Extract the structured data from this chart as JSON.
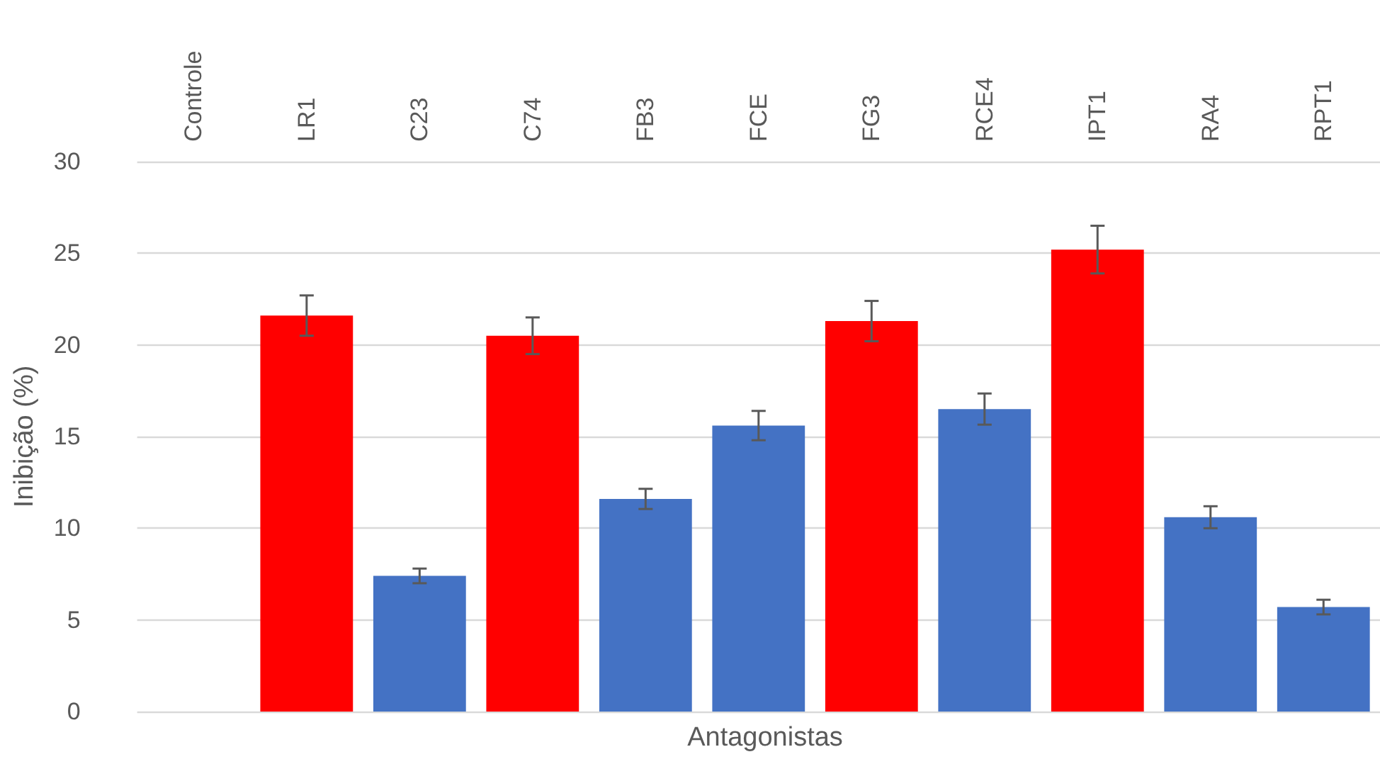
{
  "chart_data": {
    "type": "bar",
    "xlabel": "Antagonistas",
    "ylabel": "Inibição (%)",
    "categories": [
      "Controle",
      "LR1",
      "C23",
      "C74",
      "FB3",
      "FCE",
      "FG3",
      "RCE4",
      "IPT1",
      "RA4",
      "RPT1"
    ],
    "values": [
      0,
      21.6,
      7.4,
      20.5,
      11.6,
      15.6,
      21.3,
      16.5,
      25.2,
      10.6,
      5.7
    ],
    "errors": [
      null,
      1.1,
      0.4,
      1.0,
      0.55,
      0.8,
      1.1,
      0.85,
      1.3,
      0.6,
      0.4
    ],
    "colors": [
      "#4472c4",
      "#ff0000",
      "#4472c4",
      "#ff0000",
      "#4472c4",
      "#4472c4",
      "#ff0000",
      "#4472c4",
      "#ff0000",
      "#4472c4",
      "#4472c4"
    ],
    "ylim": [
      0,
      30
    ],
    "yticks": [
      0,
      5,
      10,
      15,
      20,
      25,
      30
    ],
    "grid": "y"
  }
}
